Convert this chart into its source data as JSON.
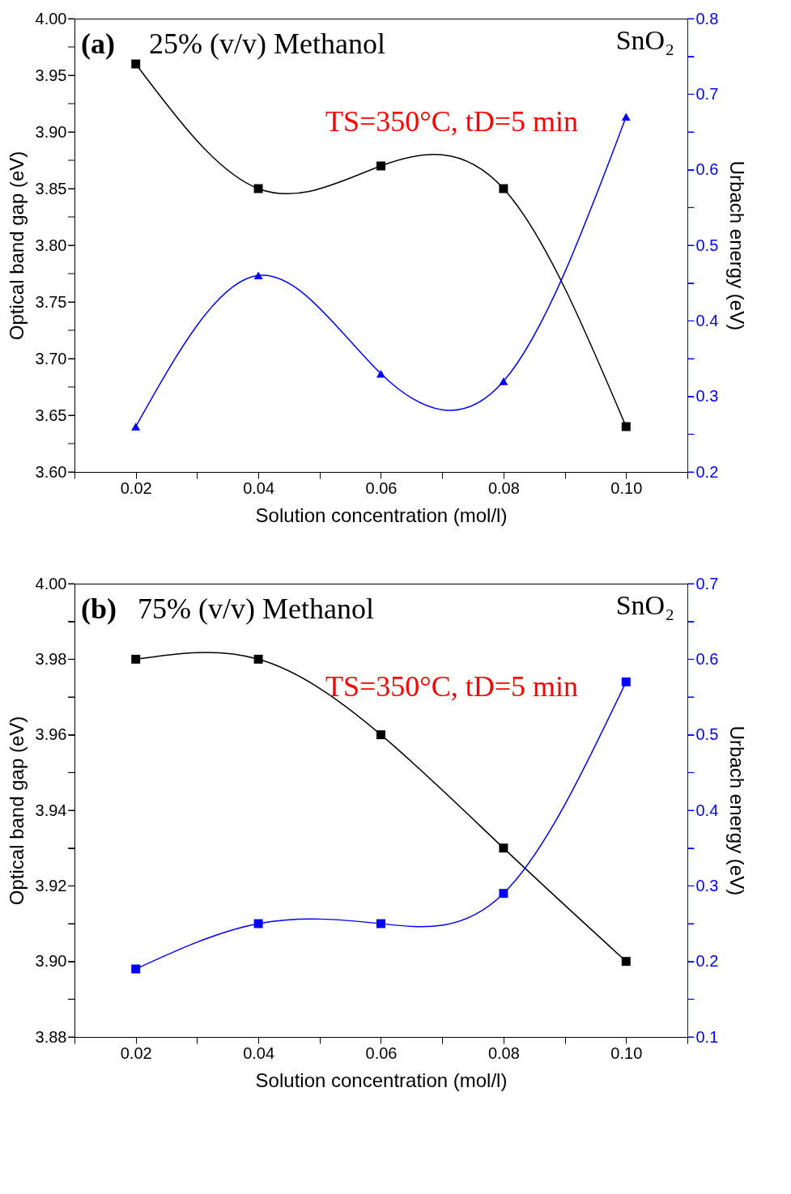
{
  "chart_data": [
    {
      "type": "line",
      "xlabel": "Solution concentration (mol/l)",
      "ylabel": "Optical band gap (eV)",
      "y2label": "Urbach energy (eV)",
      "x": [
        0.02,
        0.04,
        0.06,
        0.08,
        0.1
      ],
      "series": [
        {
          "color": "#000000",
          "marker": "square",
          "values": [
            3.96,
            3.85,
            3.87,
            3.85,
            3.64
          ]
        },
        {
          "color": "#0000ff",
          "marker": "triangle",
          "axis": "y2",
          "values": [
            0.26,
            0.46,
            0.33,
            0.32,
            0.67
          ]
        }
      ],
      "xlim": [
        0.01,
        0.11
      ],
      "xticks": [
        {
          "value": 0.01,
          "label": null
        },
        0.02,
        {
          "value": 0.03,
          "label": null
        },
        0.04,
        {
          "value": 0.05,
          "label": null
        },
        0.06,
        {
          "value": 0.07,
          "label": null
        },
        0.08,
        {
          "value": 0.09,
          "label": null
        },
        {
          "value": 0.1,
          "label": "0.10"
        },
        {
          "value": 0.11,
          "label": null
        }
      ],
      "ylim": [
        3.6,
        4.0
      ],
      "yticks": [
        {
          "value": 3.6,
          "label": "3.60"
        },
        {
          "value": 3.625,
          "label": null
        },
        3.65,
        {
          "value": 3.675,
          "label": null
        },
        {
          "value": 3.7,
          "label": "3.70"
        },
        {
          "value": 3.725,
          "label": null
        },
        3.75,
        {
          "value": 3.775,
          "label": null
        },
        {
          "value": 3.8,
          "label": "3.80"
        },
        {
          "value": 3.825,
          "label": null
        },
        3.85,
        {
          "value": 3.875,
          "label": null
        },
        {
          "value": 3.9,
          "label": "3.90"
        },
        {
          "value": 3.925,
          "label": null
        },
        3.95,
        {
          "value": 3.975,
          "label": null
        },
        {
          "value": 4.0,
          "label": "4.00"
        }
      ],
      "y2lim": [
        0.2,
        0.8
      ],
      "y2ticks": [
        0.2,
        {
          "value": 0.25,
          "label": null
        },
        0.3,
        {
          "value": 0.35,
          "label": null
        },
        0.4,
        {
          "value": 0.45,
          "label": null
        },
        0.5,
        {
          "value": 0.55,
          "label": null
        },
        0.6,
        {
          "value": 0.65,
          "label": null
        },
        0.7,
        {
          "value": 0.75,
          "label": null
        },
        0.8
      ],
      "annotations": [
        "(a)",
        "25% (v/v) Methanol",
        "SnO₂",
        "TS=350°C, tD=5 min"
      ]
    },
    {
      "type": "line",
      "xlabel": "Solution concentration (mol/l)",
      "ylabel": "Optical band gap (eV)",
      "y2label": "Urbach energy (eV)",
      "x": [
        0.02,
        0.04,
        0.06,
        0.08,
        0.1
      ],
      "series": [
        {
          "color": "#000000",
          "marker": "square",
          "values": [
            3.98,
            3.98,
            3.96,
            3.93,
            3.9
          ]
        },
        {
          "color": "#0000ff",
          "marker": "square",
          "axis": "y2",
          "values": [
            0.19,
            0.25,
            0.25,
            0.29,
            0.57
          ]
        }
      ],
      "xlim": [
        0.01,
        0.11
      ],
      "xticks": [
        {
          "value": 0.01,
          "label": null
        },
        0.02,
        {
          "value": 0.03,
          "label": null
        },
        0.04,
        {
          "value": 0.05,
          "label": null
        },
        0.06,
        {
          "value": 0.07,
          "label": null
        },
        0.08,
        {
          "value": 0.09,
          "label": null
        },
        {
          "value": 0.1,
          "label": "0.10"
        },
        {
          "value": 0.11,
          "label": null
        }
      ],
      "ylim": [
        3.88,
        4.0
      ],
      "yticks": [
        3.88,
        {
          "value": 3.89,
          "label": null
        },
        {
          "value": 3.9,
          "label": "3.90"
        },
        {
          "value": 3.91,
          "label": null
        },
        3.92,
        {
          "value": 3.93,
          "label": null
        },
        3.94,
        {
          "value": 3.95,
          "label": null
        },
        3.96,
        {
          "value": 3.97,
          "label": null
        },
        3.98,
        {
          "value": 3.99,
          "label": null
        },
        {
          "value": 4.0,
          "label": "4.00"
        }
      ],
      "y2lim": [
        0.1,
        0.7
      ],
      "y2ticks": [
        0.1,
        {
          "value": 0.15,
          "label": null
        },
        0.2,
        {
          "value": 0.25,
          "label": null
        },
        0.3,
        {
          "value": 0.35,
          "label": null
        },
        0.4,
        {
          "value": 0.45,
          "label": null
        },
        0.5,
        {
          "value": 0.55,
          "label": null
        },
        0.6,
        {
          "value": 0.65,
          "label": null
        },
        0.7
      ],
      "annotations": [
        "(b)",
        "75% (v/v) Methanol",
        "SnO₂",
        "TS=350°C, tD=5 min"
      ]
    }
  ]
}
